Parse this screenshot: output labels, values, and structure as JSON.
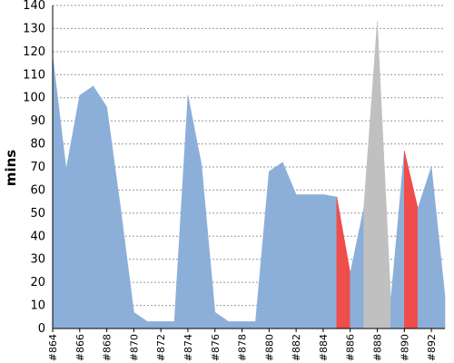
{
  "chart_data": {
    "type": "area",
    "ylabel": "mins",
    "xlabel": "",
    "ylim": [
      0,
      140
    ],
    "yticks": [
      0,
      10,
      20,
      30,
      40,
      50,
      60,
      70,
      80,
      90,
      100,
      110,
      120,
      130,
      140
    ],
    "grid": "horizontal-dashed",
    "x": [
      "#864",
      "#865",
      "#866",
      "#867",
      "#868",
      "#869",
      "#870",
      "#871",
      "#872",
      "#873",
      "#874",
      "#875",
      "#876",
      "#877",
      "#878",
      "#879",
      "#880",
      "#881",
      "#882",
      "#883",
      "#884",
      "#885",
      "#886",
      "#887",
      "#888",
      "#889",
      "#890",
      "#891",
      "#892",
      "#893"
    ],
    "xtick_labels": [
      "#864",
      "#866",
      "#868",
      "#870",
      "#872",
      "#874",
      "#876",
      "#878",
      "#880",
      "#882",
      "#884",
      "#886",
      "#888",
      "#890",
      "#892"
    ],
    "values": [
      118,
      69,
      101,
      105,
      96,
      53,
      7,
      3,
      3,
      3,
      101,
      71,
      7,
      3,
      3,
      3,
      68,
      72,
      58,
      58,
      58,
      57,
      24,
      52,
      133,
      12,
      77,
      52,
      70,
      14
    ],
    "status": [
      "success",
      "success",
      "success",
      "success",
      "success",
      "success",
      "success",
      "success",
      "success",
      "success",
      "success",
      "success",
      "success",
      "success",
      "success",
      "success",
      "success",
      "success",
      "success",
      "success",
      "success",
      "success",
      "failure",
      "success",
      "aborted",
      "aborted",
      "success",
      "failure",
      "success",
      "success"
    ],
    "colors": {
      "success": "#8cafd9",
      "failure": "#ef4c4c",
      "aborted": "#c0c0c0",
      "grid": "#999999"
    }
  }
}
